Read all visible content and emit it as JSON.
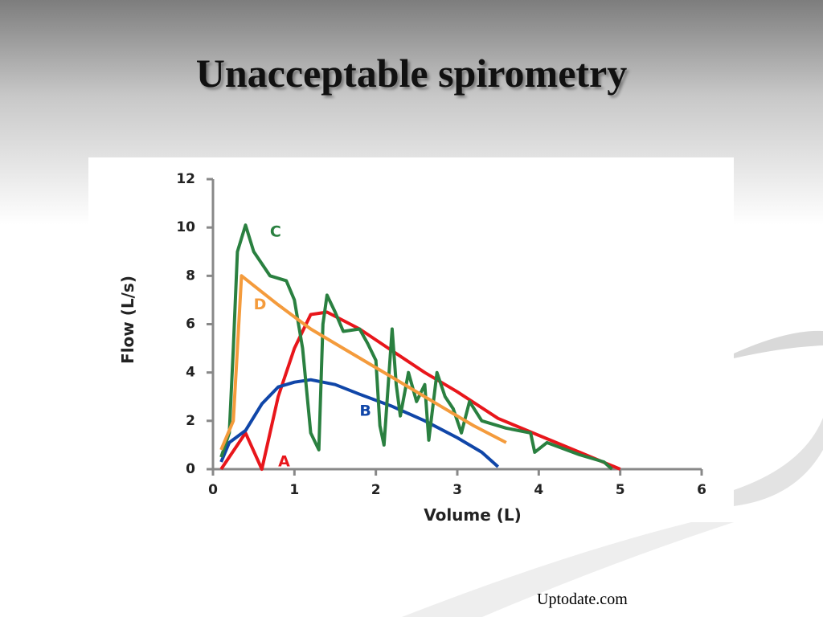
{
  "chart_data": {
    "type": "line",
    "title": "Unacceptable spirometry",
    "x_label": "Volume (L)",
    "y_label": "Flow (L/s)",
    "source": "Uptodate.com",
    "xlim": [
      0,
      6
    ],
    "xticks": [
      0,
      1,
      2,
      3,
      4,
      5,
      6
    ],
    "ylim": [
      0,
      12
    ],
    "yticks": [
      0,
      2,
      4,
      6,
      8,
      10,
      12
    ],
    "series": [
      {
        "name": "A",
        "color": "#e8161b",
        "x": [
          0.1,
          0.4,
          0.6,
          0.8,
          1.0,
          1.2,
          1.4,
          1.8,
          2.2,
          2.6,
          3.0,
          3.5,
          4.0,
          4.5,
          5.0
        ],
        "values": [
          0,
          1.5,
          0,
          3,
          5,
          6.4,
          6.5,
          5.8,
          4.9,
          4.0,
          3.2,
          2.1,
          1.4,
          0.7,
          0
        ]
      },
      {
        "name": "B",
        "color": "#1046a8",
        "x": [
          0.1,
          0.2,
          0.4,
          0.6,
          0.8,
          1.0,
          1.2,
          1.5,
          1.8,
          2.2,
          2.6,
          3.0,
          3.3,
          3.5
        ],
        "values": [
          0.3,
          1.1,
          1.6,
          2.7,
          3.4,
          3.6,
          3.7,
          3.5,
          3.1,
          2.6,
          2.0,
          1.3,
          0.7,
          0.1
        ]
      },
      {
        "name": "C",
        "color": "#2a8040",
        "x": [
          0.1,
          0.2,
          0.25,
          0.3,
          0.4,
          0.5,
          0.6,
          0.7,
          0.9,
          1.0,
          1.1,
          1.2,
          1.3,
          1.35,
          1.4,
          1.5,
          1.6,
          1.8,
          1.9,
          2.0,
          2.05,
          2.1,
          2.2,
          2.25,
          2.3,
          2.4,
          2.5,
          2.6,
          2.65,
          2.75,
          2.85,
          2.95,
          3.05,
          3.15,
          3.3,
          3.6,
          3.9,
          3.95,
          4.1,
          4.5,
          4.8,
          4.9
        ],
        "values": [
          0.5,
          1.5,
          5,
          9,
          10.1,
          9,
          8.5,
          8,
          7.8,
          7,
          5,
          1.5,
          0.8,
          6,
          7.2,
          6.5,
          5.7,
          5.8,
          5.2,
          4.5,
          1.8,
          1.0,
          5.8,
          3.5,
          2.2,
          4.0,
          2.8,
          3.5,
          1.2,
          4.0,
          3.0,
          2.5,
          1.5,
          2.8,
          2.0,
          1.7,
          1.5,
          0.7,
          1.1,
          0.6,
          0.3,
          0
        ]
      },
      {
        "name": "D",
        "color": "#f49b3c",
        "x": [
          0.1,
          0.25,
          0.35,
          0.5,
          0.8,
          1.2,
          1.6,
          2.0,
          2.4,
          2.8,
          3.2,
          3.6
        ],
        "values": [
          0.8,
          2,
          8,
          7.6,
          6.8,
          5.8,
          5.0,
          4.2,
          3.4,
          2.6,
          1.8,
          1.1
        ]
      }
    ]
  }
}
